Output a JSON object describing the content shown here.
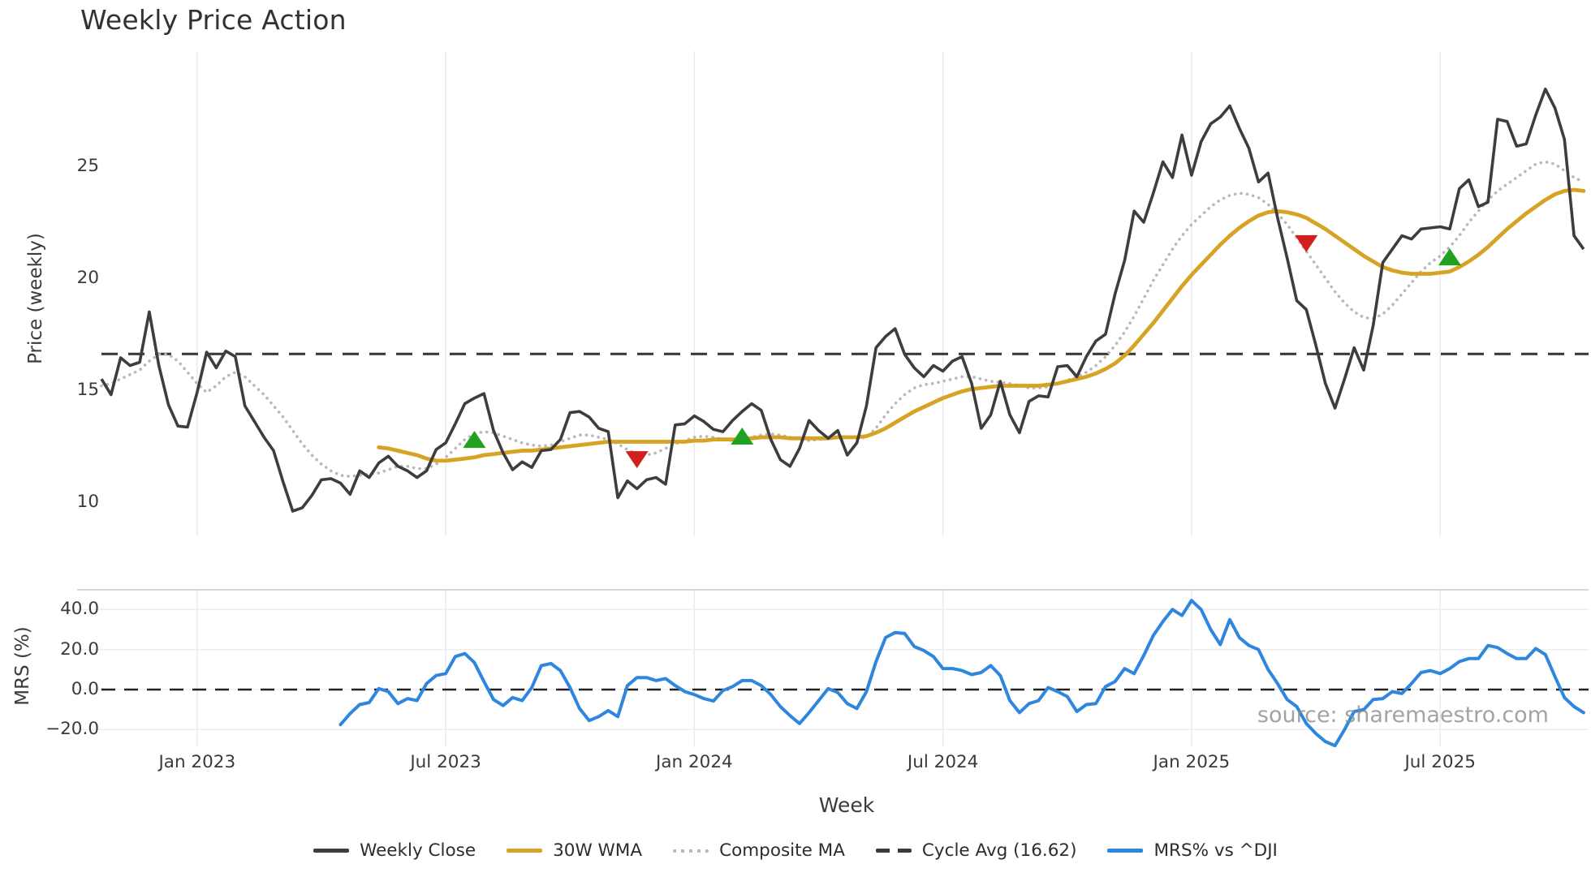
{
  "page": {
    "title": "Weekly Price Action"
  },
  "watermark": "source: sharemaestro.com",
  "chart_data": {
    "type": "line",
    "title": "Weekly Price Action",
    "xlabel": "Week",
    "grid": "vertical-on-both-panels, horizontal-on-lower-panel",
    "legend_position": "bottom-center",
    "weeks_total": 156,
    "x_ticks": [
      {
        "label": "Jan 2023",
        "week": 10
      },
      {
        "label": "Jul 2023",
        "week": 36
      },
      {
        "label": "Jan 2024",
        "week": 62
      },
      {
        "label": "Jul 2024",
        "week": 88
      },
      {
        "label": "Jan 2025",
        "week": 114
      },
      {
        "label": "Jul 2025",
        "week": 140
      }
    ],
    "panels": {
      "price": {
        "ylabel": "Price (weekly)",
        "yticks": [
          {
            "label": "25",
            "value": 25
          },
          {
            "label": "20",
            "value": 20
          },
          {
            "label": "15",
            "value": 15
          },
          {
            "label": "10",
            "value": 10
          }
        ],
        "ylim": [
          8.3,
          30.1
        ],
        "cycle_avg": 16.62,
        "series": [
          {
            "name": "Weekly Close",
            "style": "solid",
            "color": "#3d3d3d",
            "start_week": 0,
            "values": [
              15.5,
              14.8,
              16.45,
              16.1,
              16.25,
              18.5,
              16.1,
              14.35,
              13.4,
              13.35,
              14.9,
              16.7,
              16.0,
              16.75,
              16.5,
              14.3,
              13.6,
              12.9,
              12.3,
              10.9,
              9.6,
              9.75,
              10.3,
              11.0,
              11.05,
              10.85,
              10.35,
              11.4,
              11.1,
              11.75,
              12.05,
              11.6,
              11.4,
              11.1,
              11.4,
              12.35,
              12.65,
              13.5,
              14.4,
              14.65,
              14.85,
              13.2,
              12.2,
              11.45,
              11.8,
              11.55,
              12.3,
              12.35,
              12.8,
              14.0,
              14.05,
              13.8,
              13.3,
              13.15,
              10.2,
              10.95,
              10.6,
              11.0,
              11.1,
              10.8,
              13.45,
              13.5,
              13.85,
              13.6,
              13.25,
              13.15,
              13.65,
              14.05,
              14.4,
              14.1,
              12.8,
              11.9,
              11.6,
              12.4,
              13.65,
              13.2,
              12.85,
              13.2,
              12.1,
              12.65,
              14.3,
              16.9,
              17.4,
              17.75,
              16.6,
              16.0,
              15.6,
              16.1,
              15.85,
              16.3,
              16.5,
              15.3,
              13.3,
              13.9,
              15.4,
              13.9,
              13.1,
              14.5,
              14.75,
              14.7,
              16.05,
              16.1,
              15.6,
              16.5,
              17.2,
              17.5,
              19.3,
              20.8,
              23.0,
              22.5,
              23.8,
              25.2,
              24.5,
              26.4,
              24.6,
              26.1,
              26.9,
              27.2,
              27.7,
              26.7,
              25.8,
              24.3,
              24.7,
              22.7,
              20.9,
              19.0,
              18.6,
              17.0,
              15.3,
              14.2,
              15.5,
              16.9,
              15.9,
              17.9,
              20.7,
              21.3,
              21.9,
              21.75,
              22.2,
              22.25,
              22.3,
              22.2,
              24.0,
              24.4,
              23.2,
              23.4,
              27.1,
              27.0,
              25.9,
              26.0,
              27.3,
              28.45,
              27.6,
              26.2,
              21.9,
              21.3
            ]
          },
          {
            "name": "30W WMA",
            "style": "solid",
            "color": "#d7a325",
            "start_week": 29,
            "values": [
              12.45,
              12.4,
              12.3,
              12.2,
              12.1,
              11.95,
              11.85,
              11.85,
              11.9,
              11.95,
              12.0,
              12.1,
              12.15,
              12.2,
              12.25,
              12.3,
              12.3,
              12.35,
              12.4,
              12.45,
              12.5,
              12.55,
              12.6,
              12.65,
              12.7,
              12.7,
              12.7,
              12.7,
              12.7,
              12.7,
              12.7,
              12.7,
              12.7,
              12.75,
              12.75,
              12.8,
              12.8,
              12.8,
              12.8,
              12.85,
              12.9,
              12.9,
              12.9,
              12.85,
              12.85,
              12.85,
              12.85,
              12.85,
              12.9,
              12.9,
              12.9,
              12.95,
              13.1,
              13.3,
              13.55,
              13.8,
              14.05,
              14.25,
              14.45,
              14.65,
              14.8,
              14.95,
              15.05,
              15.1,
              15.15,
              15.2,
              15.2,
              15.2,
              15.2,
              15.2,
              15.25,
              15.3,
              15.4,
              15.5,
              15.6,
              15.75,
              15.95,
              16.2,
              16.55,
              17.0,
              17.5,
              18.0,
              18.55,
              19.1,
              19.65,
              20.15,
              20.6,
              21.05,
              21.5,
              21.9,
              22.25,
              22.55,
              22.8,
              22.95,
              23.0,
              22.95,
              22.85,
              22.7,
              22.45,
              22.2,
              21.9,
              21.6,
              21.3,
              21.0,
              20.75,
              20.5,
              20.35,
              20.25,
              20.2,
              20.2,
              20.2,
              20.25,
              20.3,
              20.5,
              20.75,
              21.05,
              21.4,
              21.8,
              22.2,
              22.55,
              22.9,
              23.2,
              23.5,
              23.75,
              23.9,
              23.95,
              23.9
            ]
          },
          {
            "name": "Composite MA",
            "style": "dotted",
            "color": "#b9b9b9",
            "start_week": 0,
            "values": [
              15.2,
              15.3,
              15.5,
              15.7,
              15.9,
              16.3,
              16.6,
              16.6,
              16.3,
              15.8,
              15.3,
              14.9,
              15.2,
              15.6,
              15.8,
              15.6,
              15.2,
              14.8,
              14.3,
              13.8,
              13.2,
              12.6,
              12.1,
              11.7,
              11.4,
              11.2,
              11.15,
              11.2,
              11.25,
              11.3,
              11.45,
              11.6,
              11.6,
              11.5,
              11.5,
              11.7,
              12.0,
              12.4,
              12.8,
              13.05,
              13.15,
              13.1,
              12.95,
              12.8,
              12.65,
              12.55,
              12.5,
              12.55,
              12.7,
              12.85,
              13.0,
              13.0,
              12.9,
              12.8,
              12.6,
              12.35,
              12.15,
              12.1,
              12.2,
              12.4,
              12.6,
              12.75,
              12.9,
              12.95,
              12.9,
              12.8,
              12.75,
              12.8,
              12.9,
              13.0,
              13.05,
              13.0,
              12.9,
              12.8,
              12.75,
              12.8,
              12.85,
              12.9,
              12.9,
              12.85,
              12.9,
              13.3,
              13.9,
              14.4,
              14.8,
              15.1,
              15.25,
              15.3,
              15.4,
              15.5,
              15.6,
              15.6,
              15.5,
              15.4,
              15.35,
              15.3,
              15.2,
              15.1,
              15.1,
              15.15,
              15.3,
              15.45,
              15.6,
              15.8,
              16.1,
              16.5,
              17.0,
              17.6,
              18.3,
              19.1,
              19.9,
              20.6,
              21.3,
              21.9,
              22.4,
              22.8,
              23.2,
              23.5,
              23.7,
              23.8,
              23.75,
              23.6,
              23.3,
              22.9,
              22.4,
              21.8,
              21.2,
              20.6,
              20.0,
              19.4,
              18.9,
              18.5,
              18.25,
              18.2,
              18.4,
              18.8,
              19.3,
              19.8,
              20.3,
              20.7,
              21.0,
              21.4,
              21.9,
              22.5,
              23.0,
              23.5,
              23.9,
              24.2,
              24.5,
              24.8,
              25.1,
              25.2,
              25.1,
              24.8,
              24.5,
              24.3
            ]
          }
        ],
        "signals": [
          {
            "type": "buy",
            "shape": "triangle-up",
            "color": "#21a121",
            "week": 39,
            "value": 12.75
          },
          {
            "type": "sell",
            "shape": "triangle-down",
            "color": "#d01f1f",
            "week": 56,
            "value": 11.95
          },
          {
            "type": "buy",
            "shape": "triangle-up",
            "color": "#21a121",
            "week": 67,
            "value": 12.9
          },
          {
            "type": "sell",
            "shape": "triangle-down",
            "color": "#d01f1f",
            "week": 126,
            "value": 21.6
          },
          {
            "type": "buy",
            "shape": "triangle-up",
            "color": "#21a121",
            "week": 141,
            "value": 20.9
          }
        ]
      },
      "mrs": {
        "ylabel": "MRS (%)",
        "yticks": [
          {
            "label": "40.0",
            "value": 40
          },
          {
            "label": "20.0",
            "value": 20
          },
          {
            "label": "0.0",
            "value": 0
          },
          {
            "label": "−20.0",
            "value": -20
          }
        ],
        "ylim": [
          -32.5,
          49.5
        ],
        "zero_line_dashed": true,
        "series": [
          {
            "name": "MRS% vs ^DJI",
            "style": "solid",
            "color": "#2e86de",
            "start_week": 25,
            "values": [
              -17.5,
              -12,
              -7.5,
              -6.5,
              0.5,
              -1,
              -7,
              -4.5,
              -5.5,
              3,
              7,
              8,
              16.5,
              18,
              13.5,
              4,
              -5,
              -8,
              -4,
              -5.5,
              1,
              12,
              13,
              9.5,
              1,
              -9.5,
              -15.5,
              -13.5,
              -10.5,
              -13.5,
              2,
              6,
              6,
              4.5,
              5.5,
              2,
              -1,
              -2.5,
              -4.5,
              -5.7,
              -0.5,
              1.5,
              4.5,
              4.5,
              2,
              -2.5,
              -8.5,
              -13,
              -17,
              -11.5,
              -5.5,
              0.5,
              -1.5,
              -7,
              -9.5,
              -1,
              14,
              26,
              28.5,
              28,
              21.5,
              19.5,
              16.5,
              10.5,
              10.5,
              9.5,
              7.5,
              8.5,
              12,
              7,
              -5.5,
              -11.5,
              -7,
              -5.5,
              1,
              -1,
              -3.5,
              -11,
              -7.5,
              -7,
              1.5,
              4,
              10.5,
              8,
              17,
              27,
              34,
              40,
              37,
              44.5,
              40,
              30,
              22.5,
              35,
              26,
              22,
              20,
              10,
              3,
              -5,
              -8.5,
              -17,
              -22,
              -26,
              -28,
              -20,
              -11,
              -10,
              -5,
              -4.5,
              -1,
              -2,
              3,
              8.5,
              9.5,
              8,
              10.5,
              14,
              15.5,
              15.5,
              22,
              21,
              18,
              15.5,
              15.5,
              20.5,
              17.5,
              6.5,
              -4,
              -8.5,
              -11.5
            ]
          }
        ]
      }
    },
    "legend": [
      {
        "label": "Weekly Close",
        "color": "#3d3d3d",
        "style": "solid"
      },
      {
        "label": "30W WMA",
        "color": "#d7a325",
        "style": "solid"
      },
      {
        "label": "Composite MA",
        "color": "#b9b9b9",
        "style": "dotted"
      },
      {
        "label": "Cycle Avg (16.62)",
        "color": "#3a3a3a",
        "style": "dashed"
      },
      {
        "label": "MRS% vs ^DJI",
        "color": "#2e86de",
        "style": "solid"
      }
    ],
    "colors": {
      "background": "#ffffff",
      "grid_vertical": "#e9e9f0",
      "grid_horizontal": "#ededed",
      "panel_top_spine": "#c9c9c9",
      "tick_text": "#3a3a3a",
      "title_text": "#323232",
      "watermark_text": "#8a8a8a"
    }
  }
}
